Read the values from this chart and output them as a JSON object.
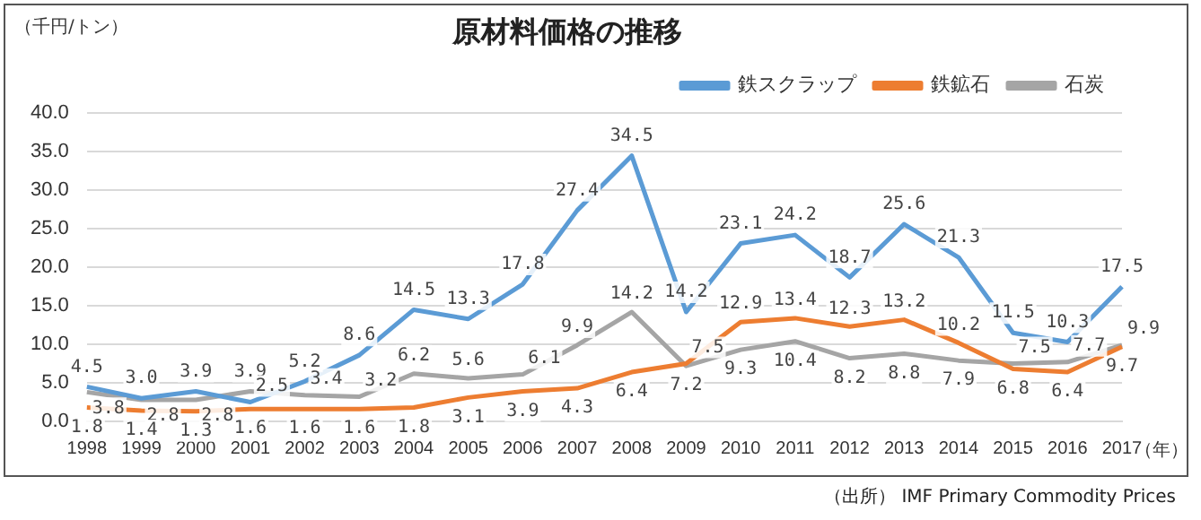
{
  "chart_data": {
    "type": "line",
    "title": "原材料価格の推移",
    "ylabel": "（千円/トン）",
    "xlabel": "（年）",
    "categories": [
      "1998",
      "1999",
      "2000",
      "2001",
      "2002",
      "2003",
      "2004",
      "2005",
      "2006",
      "2007",
      "2008",
      "2009",
      "2010",
      "2011",
      "2012",
      "2013",
      "2014",
      "2015",
      "2016",
      "2017"
    ],
    "series": [
      {
        "name": "鉄スクラップ",
        "color": "#5b9bd5",
        "values": [
          4.5,
          3.0,
          3.9,
          2.5,
          5.2,
          8.6,
          14.5,
          13.3,
          17.8,
          27.4,
          34.5,
          14.2,
          23.1,
          24.2,
          18.7,
          25.6,
          21.3,
          11.5,
          10.3,
          17.5
        ],
        "value_labels": [
          "4.5",
          "3.0",
          "3.9",
          "2.5",
          "5.2",
          "8.6",
          "14.5",
          "13.3",
          "17.8",
          "27.4",
          "34.5",
          "14.2",
          "23.1",
          "24.2",
          "18.7",
          "25.6",
          "21.3",
          "11.5",
          "10.3",
          "17.5"
        ]
      },
      {
        "name": "鉄鉱石",
        "color": "#ed7d31",
        "values": [
          1.8,
          1.4,
          1.3,
          1.6,
          1.6,
          1.6,
          1.8,
          3.1,
          3.9,
          4.3,
          6.4,
          7.5,
          12.9,
          13.4,
          12.3,
          13.2,
          10.2,
          6.8,
          6.4,
          9.7
        ],
        "value_labels": [
          "1.8",
          "1.4",
          "1.3",
          "1.6",
          "1.6",
          "1.6",
          "1.8",
          "3.1",
          "3.9",
          "4.3",
          "6.4",
          "7.5",
          "12.9",
          "13.4",
          "12.3",
          "13.2",
          "10.2",
          "6.8",
          "6.4",
          "9.7"
        ]
      },
      {
        "name": "石炭",
        "color": "#a5a5a5",
        "values": [
          3.8,
          2.8,
          2.8,
          3.9,
          3.4,
          3.2,
          6.2,
          5.6,
          6.1,
          9.9,
          14.2,
          7.2,
          9.3,
          10.4,
          8.2,
          8.8,
          7.9,
          7.5,
          7.7,
          9.9
        ],
        "value_labels": [
          "3.8",
          "2.8",
          "2.8",
          "3.9",
          "3.4",
          "3.2",
          "6.2",
          "5.6",
          "6.1",
          "9.9",
          "14.2",
          "7.2",
          "9.3",
          "10.4",
          "8.2",
          "8.8",
          "7.9",
          "7.5",
          "7.7",
          "9.9"
        ]
      }
    ],
    "ylim": [
      0,
      40
    ],
    "yticks": [
      {
        "value": 0,
        "label": "0.0"
      },
      {
        "value": 5,
        "label": "5.0"
      },
      {
        "value": 10,
        "label": "10.0"
      },
      {
        "value": 15,
        "label": "15.0"
      },
      {
        "value": 20,
        "label": "20.0"
      },
      {
        "value": 25,
        "label": "25.0"
      },
      {
        "value": 30,
        "label": "30.0"
      },
      {
        "value": 35,
        "label": "35.0"
      },
      {
        "value": 40,
        "label": "40.0"
      }
    ],
    "grid": "y",
    "legend": "top right",
    "marker": "none",
    "line_style": "solid",
    "annotations": [
      "（出所） IMF Primary Commodity Prices"
    ]
  }
}
